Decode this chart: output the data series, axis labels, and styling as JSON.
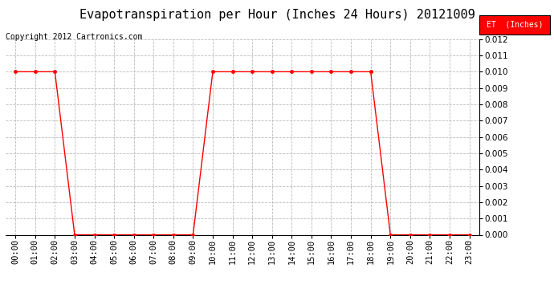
{
  "title": "Evapotranspiration per Hour (Inches 24 Hours) 20121009",
  "copyright": "Copyright 2012 Cartronics.com",
  "legend_label": "ET  (Inches)",
  "legend_bg": "#ff0000",
  "legend_text_color": "#ffffff",
  "line_color": "#ff0000",
  "marker": "o",
  "marker_size": 2.5,
  "background_color": "#ffffff",
  "grid_color": "#bbbbbb",
  "ylim": [
    0,
    0.012
  ],
  "yticks": [
    0.0,
    0.001,
    0.002,
    0.003,
    0.004,
    0.005,
    0.006,
    0.007,
    0.008,
    0.009,
    0.01,
    0.011,
    0.012
  ],
  "hours": [
    "00:00",
    "01:00",
    "02:00",
    "03:00",
    "04:00",
    "05:00",
    "06:00",
    "07:00",
    "08:00",
    "09:00",
    "10:00",
    "11:00",
    "12:00",
    "13:00",
    "14:00",
    "15:00",
    "16:00",
    "17:00",
    "18:00",
    "19:00",
    "20:00",
    "21:00",
    "22:00",
    "23:00"
  ],
  "values": [
    0.01,
    0.01,
    0.01,
    0.0,
    0.0,
    0.0,
    0.0,
    0.0,
    0.0,
    0.0,
    0.01,
    0.01,
    0.01,
    0.01,
    0.01,
    0.01,
    0.01,
    0.01,
    0.01,
    0.0,
    0.0,
    0.0,
    0.0,
    0.0
  ],
  "title_fontsize": 11,
  "tick_fontsize": 7.5,
  "copyright_fontsize": 7
}
